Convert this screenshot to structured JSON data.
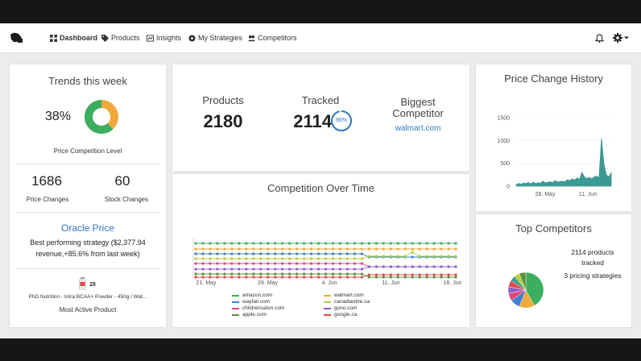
{
  "nav": {
    "items": [
      {
        "label": "Dashboard",
        "icon": "dashboard-icon"
      },
      {
        "label": "Products",
        "icon": "tag-icon"
      },
      {
        "label": "Insights",
        "icon": "insights-icon"
      },
      {
        "label": "My Strategies",
        "icon": "strategy-icon"
      },
      {
        "label": "Competitors",
        "icon": "users-icon"
      }
    ]
  },
  "trends": {
    "title": "Trends this week",
    "pct": "38%",
    "pct_value": 0.38,
    "level_label": "Price Competition Level",
    "price_changes_value": "1686",
    "price_changes_label": "Price Changes",
    "stock_changes_value": "60",
    "stock_changes_label": "Stock Changes",
    "oracle_title": "Oracle Price",
    "oracle_text": "Best performing strategy ($2,377.94 revenue,+85.6% from last week)",
    "product_count": "28",
    "product_name": "PhD Nutrition - Intra BCAA+ Powder - 450g / Wat...",
    "product_caption": "Most Active Product"
  },
  "stats": {
    "products_label": "Products",
    "products_value": "2180",
    "tracked_label": "Tracked",
    "tracked_value": "2114",
    "tracked_pct": "96%",
    "tracked_pct_value": 0.96,
    "competitor_label": "Biggest Competitor",
    "competitor_value": "walmart.com"
  },
  "competition": {
    "title": "Competition Over Time",
    "legend": [
      {
        "name": "amazon.com",
        "color": "#3cae5f"
      },
      {
        "name": "walmart.com",
        "color": "#f0a93c"
      },
      {
        "name": "wayfair.com",
        "color": "#3f7fcf"
      },
      {
        "name": "canadiantire.ca",
        "color": "#b5cf3f"
      },
      {
        "name": "childrensalon.com",
        "color": "#e0457a"
      },
      {
        "name": "guno.com",
        "color": "#8e5fc9"
      },
      {
        "name": "apple.com",
        "color": "#5b8f3d"
      },
      {
        "name": "google.ca",
        "color": "#e24b4b"
      }
    ]
  },
  "price_history": {
    "title": "Price Change History"
  },
  "top_competitors": {
    "title": "Top Competitors",
    "products_tracked": "2114 products tracked",
    "strategies": "3 pricing strategies"
  },
  "chart_data": [
    {
      "type": "line",
      "title": "Competition Over Time",
      "x": [
        "21. May",
        "28. May",
        "4. Jun",
        "11. Jun",
        "18. Jun"
      ],
      "series": [
        {
          "name": "amazon.com",
          "color": "#3cae5f"
        },
        {
          "name": "walmart.com",
          "color": "#f0a93c"
        },
        {
          "name": "wayfair.com",
          "color": "#3f7fcf"
        },
        {
          "name": "canadiantire.ca",
          "color": "#b5cf3f"
        },
        {
          "name": "childrensalon.com",
          "color": "#e0457a"
        },
        {
          "name": "guno.com",
          "color": "#8e5fc9"
        },
        {
          "name": "apple.com",
          "color": "#5b8f3d"
        },
        {
          "name": "google.ca",
          "color": "#e24b4b"
        }
      ]
    },
    {
      "type": "area",
      "title": "Price Change History",
      "x_ticks": [
        "28. May",
        "11. Jun"
      ],
      "y_ticks": [
        0,
        500,
        1000,
        1500
      ],
      "ylim": [
        0,
        1500
      ],
      "color": "#3a9a93",
      "values": [
        30,
        60,
        40,
        70,
        55,
        80,
        50,
        90,
        60,
        75,
        65,
        110,
        70,
        85,
        95,
        80,
        120,
        90,
        100,
        110,
        95,
        140,
        120,
        160,
        130,
        180,
        150,
        300,
        200,
        170,
        190,
        160,
        200,
        220,
        180,
        1050,
        500,
        250,
        200,
        300
      ]
    },
    {
      "type": "pie",
      "title": "Top Competitors",
      "slices": [
        {
          "value": 42,
          "color": "#3cae5f"
        },
        {
          "value": 14,
          "color": "#f0a93c"
        },
        {
          "value": 9,
          "color": "#3f7fcf"
        },
        {
          "value": 7,
          "color": "#e0457a"
        },
        {
          "value": 6,
          "color": "#8e5fc9"
        },
        {
          "value": 6,
          "color": "#e24b4b"
        },
        {
          "value": 5,
          "color": "#3a9a93"
        },
        {
          "value": 5,
          "color": "#b5cf3f"
        },
        {
          "value": 6,
          "color": "#5b8f3d"
        }
      ]
    }
  ]
}
